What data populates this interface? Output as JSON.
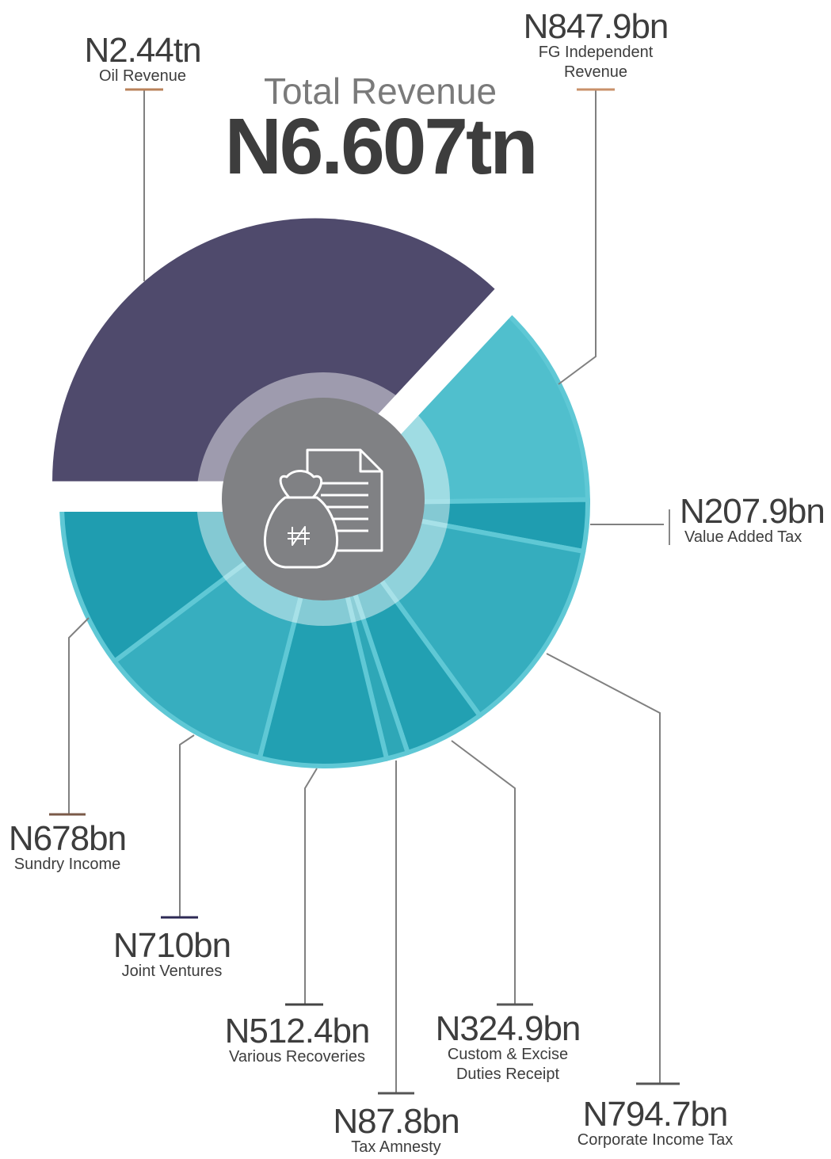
{
  "chart_data": {
    "type": "pie",
    "title": "Total Revenue",
    "subtitle": "N6.607tn",
    "categories": [
      "Oil Revenue",
      "FG Independent\nRevenue",
      "Value Added Tax",
      "Corporate Income Tax",
      "Custom & Excise\nDuties Receipt",
      "Tax Amnesty",
      "Various Recoveries",
      "Joint Ventures",
      "Sundry Income"
    ],
    "values": [
      2440,
      847.9,
      207.9,
      794.7,
      324.9,
      87.8,
      512.4,
      710,
      678
    ],
    "value_labels": [
      "N2.44tn",
      "N847.9bn",
      "N207.9bn",
      "N794.7bn",
      "N324.9bn",
      "N87.8bn",
      "N512.4bn",
      "N710bn",
      "N678bn"
    ],
    "colors": [
      "#4f4a6c",
      "#50bfcd",
      "#1f9db0",
      "#35adbe",
      "#22a0b2",
      "#2ea7b7",
      "#22a0b2",
      "#37aebf",
      "#1f9db0"
    ]
  }
}
